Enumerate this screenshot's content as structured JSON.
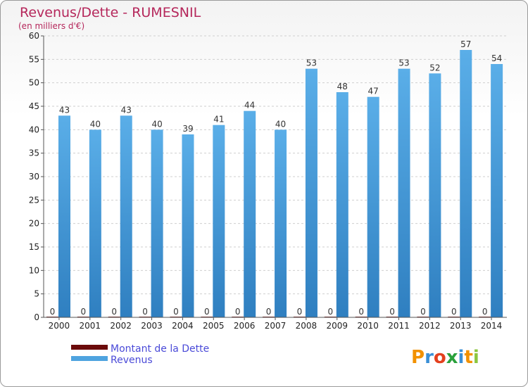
{
  "chart_data": {
    "type": "bar",
    "title": "Revenus/Dette - RUMESNIL",
    "subtitle": "(en milliers d'€)",
    "categories": [
      "2000",
      "2001",
      "2002",
      "2003",
      "2004",
      "2005",
      "2006",
      "2007",
      "2008",
      "2009",
      "2010",
      "2011",
      "2012",
      "2013",
      "2014"
    ],
    "series": [
      {
        "name": "Montant de la Dette",
        "color": "#6b0b0b",
        "values": [
          0,
          0,
          0,
          0,
          0,
          0,
          0,
          0,
          0,
          0,
          0,
          0,
          0,
          0,
          0
        ]
      },
      {
        "name": "Revenus",
        "color": "#4ea3df",
        "values": [
          43,
          40,
          43,
          40,
          39,
          41,
          44,
          40,
          53,
          48,
          47,
          53,
          52,
          57,
          54
        ]
      }
    ],
    "ylim": [
      0,
      60
    ],
    "yticks": [
      0,
      5,
      10,
      15,
      20,
      25,
      30,
      35,
      40,
      45,
      50,
      55,
      60
    ],
    "grid": true,
    "legend": "bottom-left"
  },
  "legend": {
    "debt_label": "Montant de la Dette",
    "revenue_label": "Revenus"
  },
  "brand": {
    "letters": [
      "P",
      "r",
      "o",
      "x",
      "i",
      "t",
      "i"
    ],
    "colors": [
      "#f29100",
      "#3a8fd6",
      "#e4401e",
      "#2aa13b",
      "#3a8fd6",
      "#f29100",
      "#8cc63f"
    ]
  }
}
